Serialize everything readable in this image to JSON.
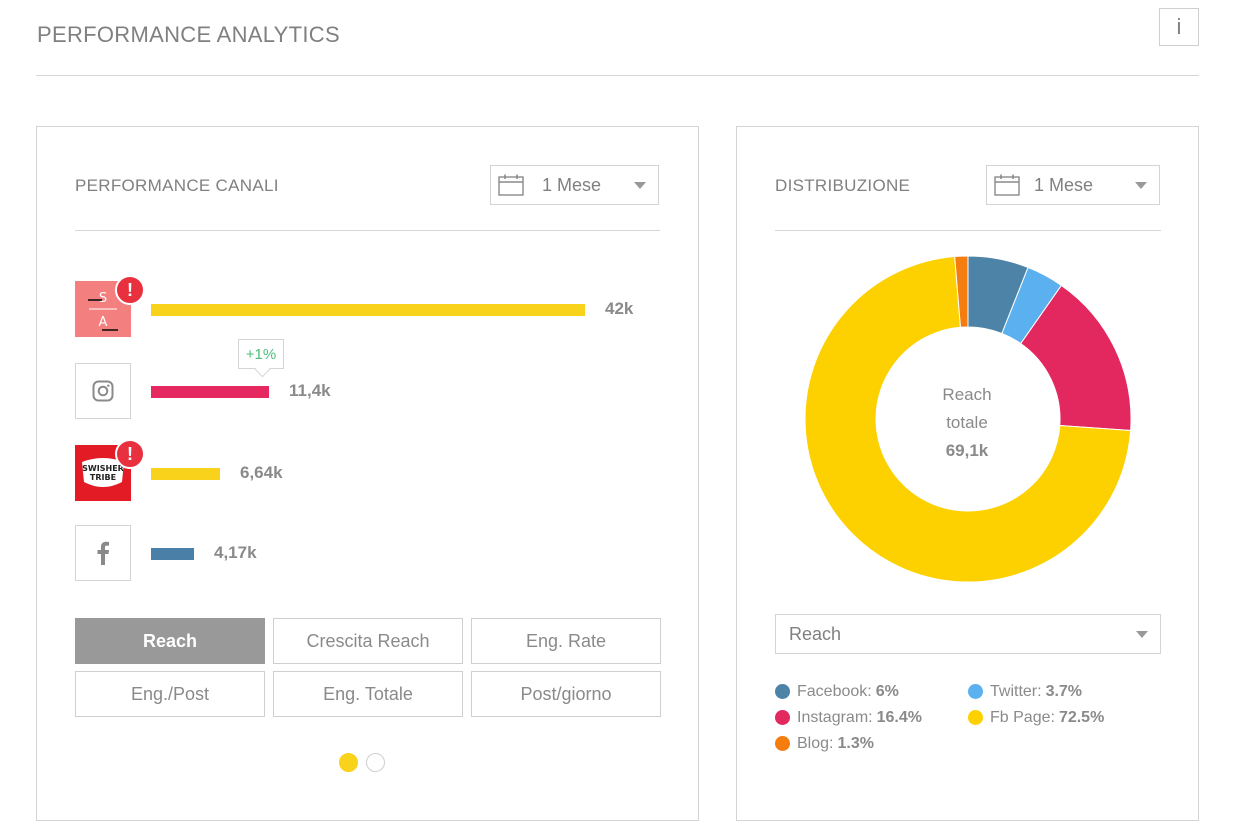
{
  "header": {
    "title": "PERFORMANCE ANALYTICS",
    "info_label": "i"
  },
  "performance": {
    "title": "PERFORMANCE CANALI",
    "period": "1 Mese",
    "channels": [
      {
        "name": "SA",
        "avatar_text": "S A",
        "value": "42k",
        "raw": 42000,
        "color": "#f9d21b",
        "alert": "!"
      },
      {
        "name": "Instagram",
        "value": "11,4k",
        "raw": 11400,
        "color": "#e5285f",
        "tooltip": "+1%"
      },
      {
        "name": "Swisher Tribe",
        "avatar_text": "SWISHER TRIBE",
        "value": "6,64k",
        "raw": 6640,
        "color": "#f9d21b",
        "alert": "!"
      },
      {
        "name": "Facebook",
        "value": "4,17k",
        "raw": 4170,
        "color": "#4a7fa7"
      }
    ],
    "metrics": [
      "Reach",
      "Crescita Reach",
      "Eng. Rate",
      "Eng./Post",
      "Eng. Totale",
      "Post/giorno"
    ],
    "active_metric": "Reach"
  },
  "distribution": {
    "title": "DISTRIBUZIONE",
    "period": "1 Mese",
    "center": {
      "line1": "Reach",
      "line2": "totale",
      "value": "69,1k"
    },
    "metric_select": "Reach",
    "legend": [
      {
        "name": "Facebook:",
        "pct": "6%",
        "color": "#4e83a8"
      },
      {
        "name": "Twitter:",
        "pct": "3.7%",
        "color": "#5bb0ef"
      },
      {
        "name": "Instagram:",
        "pct": "16.4%",
        "color": "#e3285f"
      },
      {
        "name": "Fb Page:",
        "pct": "72.5%",
        "color": "#fdd000"
      },
      {
        "name": "Blog:",
        "pct": "1.3%",
        "color": "#f57c0f"
      }
    ]
  },
  "chart_data": {
    "type": "pie",
    "title": "Reach totale",
    "categories": [
      "Facebook",
      "Twitter",
      "Instagram",
      "Fb Page",
      "Blog"
    ],
    "values": [
      6,
      3.7,
      16.4,
      72.5,
      1.3
    ],
    "colors": [
      "#4e83a8",
      "#5bb0ef",
      "#e3285f",
      "#fdd000",
      "#f57c0f"
    ],
    "total_label": "69,1k"
  }
}
